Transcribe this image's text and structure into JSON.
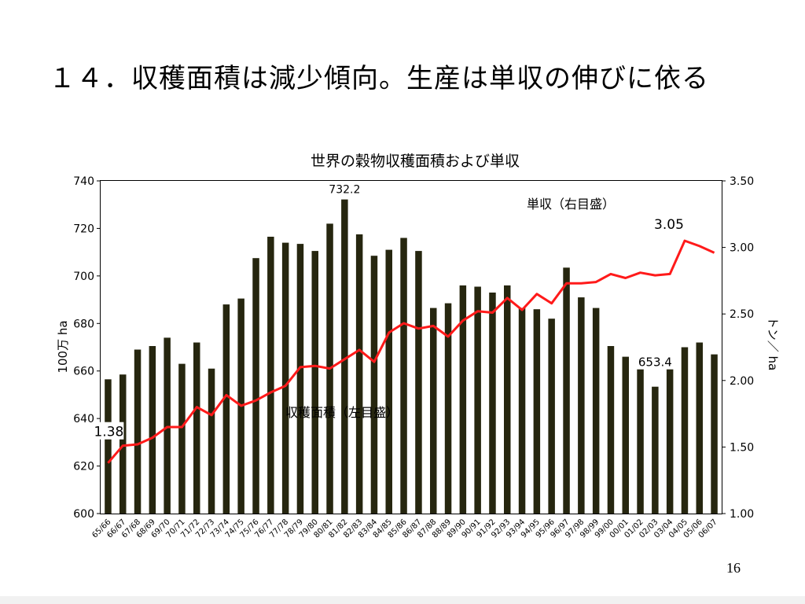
{
  "slide": {
    "title": "１４．収穫面積は減少傾向。生産は単収の伸びに依る",
    "page_number": "16"
  },
  "colors": {
    "bar": "#26260f",
    "line": "#ff1a1a"
  },
  "chart_data": {
    "type": "bar+line",
    "title": "世界の穀物収穫面積および単収",
    "ylabel_left": "100万 ha",
    "ylabel_right": "トン／ ha",
    "ylim_left": [
      600,
      740
    ],
    "ylim_right": [
      1.0,
      3.5
    ],
    "yticks_left": [
      "600",
      "620",
      "640",
      "660",
      "680",
      "700",
      "720",
      "740"
    ],
    "yticks_right": [
      "1.00",
      "1.50",
      "2.00",
      "2.50",
      "3.00",
      "3.50"
    ],
    "grid": false,
    "categories": [
      "65/66",
      "66/67",
      "67/68",
      "68/69",
      "69/70",
      "70/71",
      "71/72",
      "72/73",
      "73/74",
      "74/75",
      "75/76",
      "76/77",
      "77/78",
      "78/79",
      "79/80",
      "80/81",
      "81/82",
      "82/83",
      "83/84",
      "84/85",
      "85/86",
      "86/87",
      "87/88",
      "88/89",
      "89/90",
      "90/91",
      "91/92",
      "92/93",
      "93/94",
      "94/95",
      "95/96",
      "96/97",
      "97/98",
      "98/99",
      "99/00",
      "00/01",
      "01/02",
      "02/03",
      "03/04",
      "04/05",
      "05/06",
      "06/07"
    ],
    "series": [
      {
        "name": "収穫面積（左目盛）",
        "type": "bar",
        "axis": "left",
        "values": [
          656.5,
          658.5,
          669,
          670.5,
          674,
          663,
          672,
          661,
          688,
          690.5,
          707.5,
          716.5,
          714,
          713.5,
          710.5,
          722,
          732.2,
          717.5,
          708.5,
          711,
          716,
          710.5,
          686.5,
          688.5,
          696,
          695.5,
          693,
          696,
          686.5,
          686,
          682,
          703.5,
          691,
          686.5,
          670.5,
          666,
          666.5,
          653.4,
          665,
          670,
          672,
          667
        ]
      },
      {
        "name": "単収（右目盛）",
        "type": "line",
        "axis": "right",
        "values": [
          1.38,
          1.51,
          1.52,
          1.57,
          1.65,
          1.65,
          1.8,
          1.74,
          1.89,
          1.81,
          1.85,
          1.91,
          1.96,
          2.1,
          2.11,
          2.09,
          2.16,
          2.23,
          2.14,
          2.36,
          2.43,
          2.39,
          2.41,
          2.33,
          2.45,
          2.52,
          2.51,
          2.62,
          2.53,
          2.65,
          2.58,
          2.73,
          2.73,
          2.74,
          2.8,
          2.77,
          2.81,
          2.79,
          2.8,
          3.05,
          3.01,
          2.96
        ]
      }
    ],
    "annotations": [
      "732.2",
      "653.4",
      "1.38",
      "3.05"
    ],
    "legend_labels": {
      "bar": "収穫面積（左目盛）",
      "line": "単収（右目盛）"
    }
  }
}
